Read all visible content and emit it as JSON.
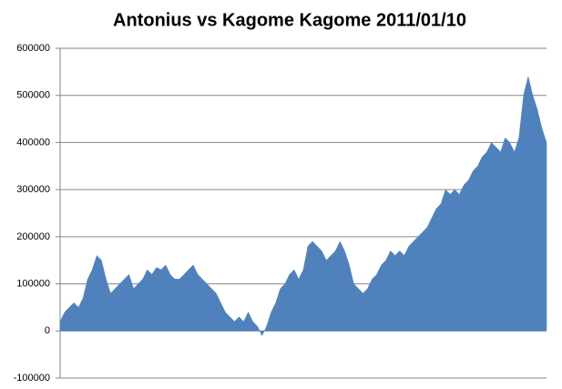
{
  "chart_data": {
    "type": "area",
    "title": "Antonius vs Kagome Kagome 2011/01/10",
    "color": "#4f81bd",
    "grid": true,
    "ylim": [
      -100000,
      600000
    ],
    "yticks": [
      -100000,
      0,
      100000,
      200000,
      300000,
      400000,
      500000,
      600000
    ],
    "values": [
      20000,
      40000,
      50000,
      60000,
      50000,
      70000,
      110000,
      130000,
      160000,
      150000,
      110000,
      80000,
      90000,
      100000,
      110000,
      120000,
      90000,
      100000,
      110000,
      130000,
      120000,
      135000,
      130000,
      140000,
      120000,
      110000,
      110000,
      120000,
      130000,
      140000,
      120000,
      110000,
      100000,
      90000,
      80000,
      60000,
      40000,
      30000,
      20000,
      30000,
      20000,
      40000,
      20000,
      10000,
      -10000,
      10000,
      40000,
      60000,
      90000,
      100000,
      120000,
      130000,
      110000,
      130000,
      180000,
      190000,
      180000,
      170000,
      150000,
      160000,
      170000,
      190000,
      170000,
      140000,
      100000,
      90000,
      80000,
      90000,
      110000,
      120000,
      140000,
      150000,
      170000,
      160000,
      170000,
      160000,
      180000,
      190000,
      200000,
      210000,
      220000,
      240000,
      260000,
      270000,
      300000,
      290000,
      300000,
      290000,
      310000,
      320000,
      340000,
      350000,
      370000,
      380000,
      400000,
      390000,
      380000,
      410000,
      400000,
      380000,
      410000,
      500000,
      540000,
      500000,
      470000,
      430000,
      400000
    ]
  }
}
